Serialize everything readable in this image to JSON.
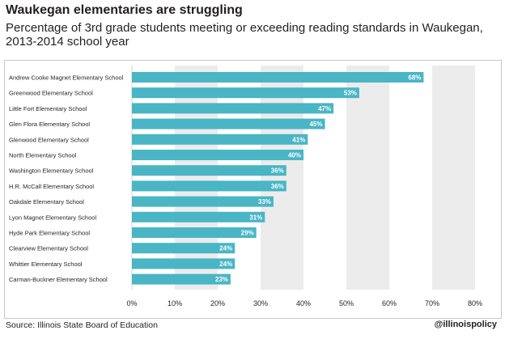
{
  "header": {
    "title": "Waukegan elementaries are struggling",
    "subtitle": "Percentage of 3rd grade students meeting or exceeding reading standards in Waukegan, 2013-2014 school year"
  },
  "footer": {
    "source": "Source: Illinois State Board of Education",
    "handle": "@illinoispolicy"
  },
  "colors": {
    "bar": "#49b5c5",
    "band_a": "#ffffff",
    "band_b": "#ececec",
    "label_text": "#ffffff"
  },
  "chart_data": {
    "type": "bar",
    "orientation": "horizontal",
    "categories": [
      "Andrew Cooke Magnet Elementary School",
      "Greenwood Elementary School",
      "Little Fort Elementary School",
      "Glen Flora Elementary School",
      "Glenwood Elementary School",
      "North Elementary School",
      "Washington Elementary School",
      "H.R. McCall Elementary School",
      "Oakdale Elementary School",
      "Lyon Magnet Elementary School",
      "Hyde Park Elementary School",
      "Clearview Elementary School",
      "Whittier Elementary School",
      "Carman-Buckner Elementary School"
    ],
    "values": [
      68,
      53,
      47,
      45,
      41,
      40,
      36,
      36,
      33,
      31,
      29,
      24,
      24,
      23
    ],
    "value_labels": [
      "68%",
      "53%",
      "47%",
      "45%",
      "41%",
      "40%",
      "36%",
      "36%",
      "33%",
      "31%",
      "29%",
      "24%",
      "24%",
      "23%"
    ],
    "x_ticks": [
      0,
      10,
      20,
      30,
      40,
      50,
      60,
      70,
      80
    ],
    "x_tick_labels": [
      "0%",
      "10%",
      "20%",
      "30%",
      "40%",
      "50%",
      "60%",
      "70%",
      "80%"
    ],
    "xlim": [
      0,
      80
    ],
    "grid": "alternating vertical bands"
  }
}
